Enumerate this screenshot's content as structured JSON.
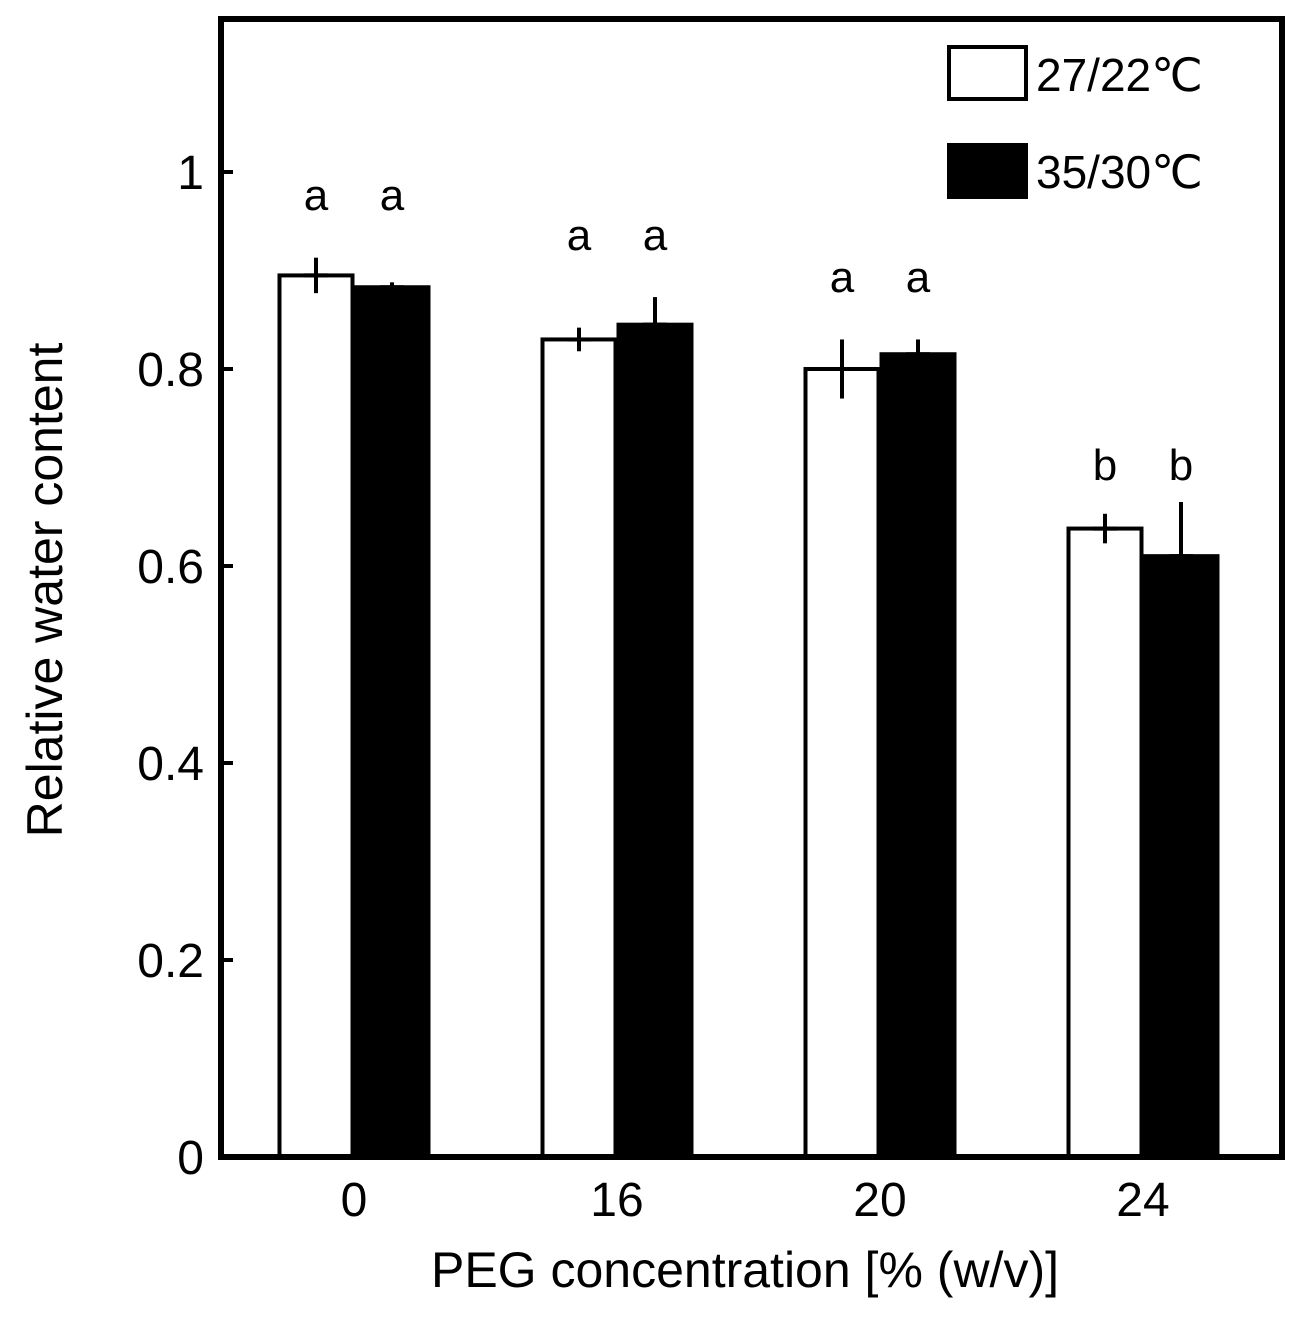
{
  "chart_data": {
    "type": "bar",
    "title": "",
    "xlabel": "PEG concentration [% (w/v)]",
    "ylabel": "Relative water content",
    "categories": [
      "0",
      "16",
      "20",
      "24"
    ],
    "ylim": [
      0,
      1.2
    ],
    "yticks": [
      0,
      0.2,
      0.4,
      0.6,
      0.8,
      1
    ],
    "ytick_labels": [
      "0",
      "0.2",
      "0.4",
      "0.6",
      "0.8",
      "1"
    ],
    "grid": false,
    "legend_position": "top-right",
    "series": [
      {
        "name": "27/22℃",
        "fill": "#ffffff",
        "values": [
          0.895,
          0.83,
          0.8,
          0.638
        ],
        "errors": [
          0.018,
          0.012,
          0.03,
          0.015
        ],
        "letters": [
          "a",
          "a",
          "a",
          "b"
        ]
      },
      {
        "name": "35/30℃",
        "fill": "#000000",
        "values": [
          0.883,
          0.845,
          0.815,
          0.61
        ],
        "errors": [
          0.005,
          0.028,
          0.015,
          0.055
        ],
        "letters": [
          "a",
          "a",
          "a",
          "b"
        ]
      }
    ]
  }
}
